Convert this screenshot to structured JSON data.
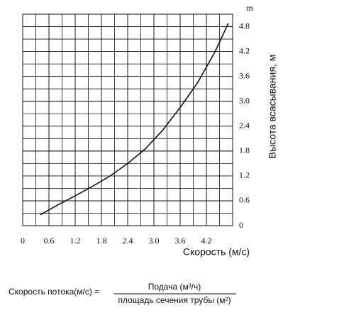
{
  "chart_data": {
    "type": "line",
    "unit_label": "m",
    "x_label": "Скорость (м/с)",
    "y_label": "Высота всасывания, м",
    "x": [
      0.4,
      0.8,
      1.2,
      1.6,
      2.0,
      2.4,
      2.8,
      3.2,
      3.6,
      4.0,
      4.4,
      4.7
    ],
    "series": [
      {
        "color": "#111111",
        "values": [
          0.26,
          0.5,
          0.72,
          0.95,
          1.2,
          1.5,
          1.85,
          2.3,
          2.85,
          3.45,
          4.2,
          4.88
        ]
      }
    ],
    "xlim": [
      0,
      4.8
    ],
    "xticks": [
      0,
      0.6,
      1.2,
      1.8,
      2.4,
      {
        "value": 3,
        "label": "3.0"
      },
      3.6,
      4.2
    ],
    "ylim": [
      0,
      5.1
    ],
    "yticks": [
      0,
      0.6,
      1.2,
      1.8,
      2.4,
      {
        "value": 3,
        "label": "3.0"
      },
      3.6,
      4.2,
      4.8
    ],
    "grid": true
  },
  "formula": {
    "lhs": "Скорость потока(м/с) =",
    "numerator": "Подача (м³/ч)",
    "denominator": "площадь сечения трубы (м²)"
  }
}
